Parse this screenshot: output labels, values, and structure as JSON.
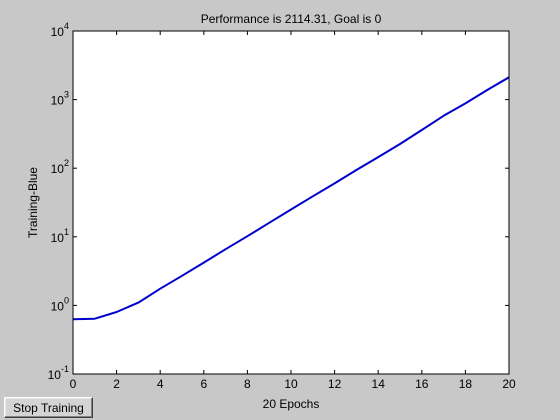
{
  "window": {
    "stop_button_label": "Stop Training"
  },
  "chart_data": {
    "type": "line",
    "title": "Performance is 2114.31, Goal is 0",
    "xlabel": "20 Epochs",
    "ylabel": "Training-Blue",
    "xlim": [
      0,
      20
    ],
    "ylim": [
      0.1,
      10000
    ],
    "yscale": "log",
    "grid": false,
    "x_ticks": [
      0,
      2,
      4,
      6,
      8,
      10,
      12,
      14,
      16,
      18,
      20
    ],
    "y_ticks": [
      {
        "value": 0.1,
        "base": "10",
        "exp": "-1"
      },
      {
        "value": 1,
        "base": "10",
        "exp": "0"
      },
      {
        "value": 10,
        "base": "10",
        "exp": "1"
      },
      {
        "value": 100,
        "base": "10",
        "exp": "2"
      },
      {
        "value": 1000,
        "base": "10",
        "exp": "3"
      },
      {
        "value": 10000,
        "base": "10",
        "exp": "4"
      }
    ],
    "series": [
      {
        "color": "#0000cc",
        "x": [
          0,
          1,
          2,
          3,
          4,
          5,
          6,
          7,
          8,
          9,
          10,
          11,
          12,
          13,
          14,
          15,
          16,
          17,
          18,
          19,
          20
        ],
        "y": [
          0.63,
          0.64,
          0.8,
          1.1,
          1.75,
          2.7,
          4.2,
          6.6,
          10.2,
          16,
          25,
          39,
          60,
          94,
          145,
          225,
          360,
          580,
          880,
          1380,
          2114.31
        ]
      }
    ]
  }
}
